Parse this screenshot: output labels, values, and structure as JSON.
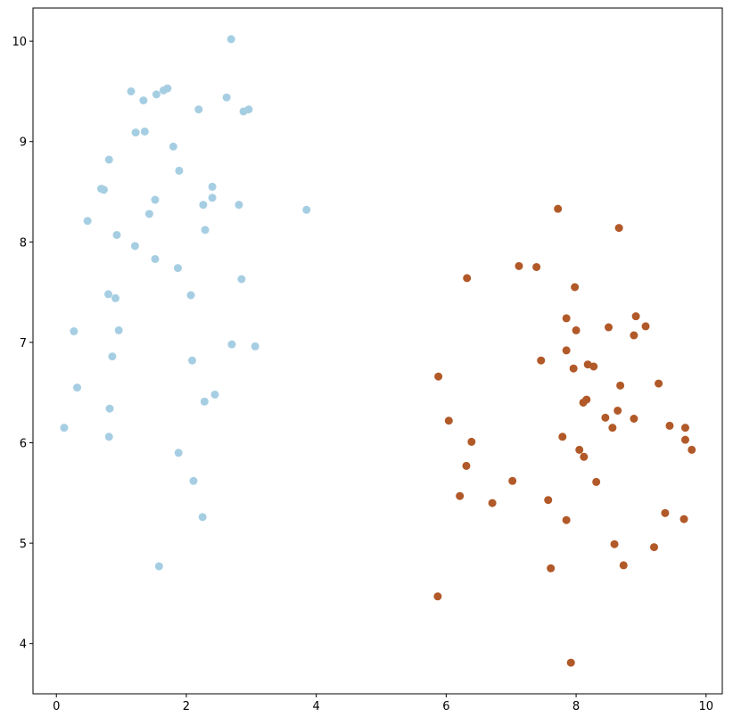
{
  "chart_data": {
    "type": "scatter",
    "xlim": [
      -0.36,
      10.25
    ],
    "ylim": [
      3.5,
      10.33
    ],
    "xticks": [
      0,
      2,
      4,
      6,
      8,
      10
    ],
    "yticks": [
      4,
      5,
      6,
      7,
      8,
      9,
      10
    ],
    "series": [
      {
        "color": "#a6cee3",
        "x": [
          2.69,
          1.15,
          1.54,
          1.65,
          1.71,
          1.34,
          2.62,
          2.19,
          2.88,
          2.96,
          1.22,
          1.36,
          1.8,
          0.81,
          1.89,
          0.69,
          0.73,
          2.4,
          1.52,
          2.4,
          2.26,
          2.81,
          1.43,
          3.85,
          0.48,
          2.29,
          0.93,
          1.21,
          1.52,
          1.87,
          2.85,
          0.8,
          0.91,
          2.07,
          0.27,
          0.96,
          2.7,
          3.06,
          0.86,
          2.09,
          0.32,
          2.44,
          2.28,
          0.82,
          0.12,
          0.81,
          1.88,
          2.11,
          2.25,
          1.58
        ],
        "values": [
          10.02,
          9.5,
          9.47,
          9.51,
          9.53,
          9.41,
          9.44,
          9.32,
          9.3,
          9.32,
          9.09,
          9.1,
          8.95,
          8.82,
          8.71,
          8.53,
          8.52,
          8.55,
          8.42,
          8.44,
          8.37,
          8.37,
          8.28,
          8.32,
          8.21,
          8.12,
          8.07,
          7.96,
          7.83,
          7.74,
          7.63,
          7.48,
          7.44,
          7.47,
          7.11,
          7.12,
          6.98,
          6.96,
          6.86,
          6.82,
          6.55,
          6.48,
          6.41,
          6.34,
          6.15,
          6.06,
          5.9,
          5.62,
          5.26,
          4.77
        ]
      },
      {
        "color": "#b15928",
        "x": [
          7.72,
          8.66,
          7.12,
          7.39,
          6.32,
          7.98,
          8.92,
          7.85,
          9.07,
          8.5,
          8.0,
          8.89,
          7.85,
          7.46,
          8.18,
          8.27,
          7.96,
          5.88,
          9.27,
          8.68,
          8.16,
          8.11,
          8.64,
          8.45,
          8.89,
          6.04,
          9.44,
          9.68,
          8.56,
          7.79,
          6.39,
          9.68,
          9.78,
          8.05,
          8.12,
          6.31,
          8.31,
          7.02,
          6.21,
          7.57,
          6.71,
          9.37,
          9.66,
          7.85,
          8.59,
          9.2,
          8.73,
          7.61,
          5.87,
          7.92
        ],
        "values": [
          8.33,
          8.14,
          7.76,
          7.75,
          7.64,
          7.55,
          7.26,
          7.24,
          7.16,
          7.15,
          7.12,
          7.07,
          6.92,
          6.82,
          6.78,
          6.76,
          6.74,
          6.66,
          6.59,
          6.57,
          6.43,
          6.4,
          6.32,
          6.25,
          6.24,
          6.22,
          6.17,
          6.15,
          6.15,
          6.06,
          6.01,
          6.03,
          5.93,
          5.93,
          5.86,
          5.77,
          5.61,
          5.62,
          5.47,
          5.43,
          5.4,
          5.3,
          5.24,
          5.23,
          4.99,
          4.96,
          4.78,
          4.75,
          4.47,
          3.81
        ]
      }
    ]
  }
}
